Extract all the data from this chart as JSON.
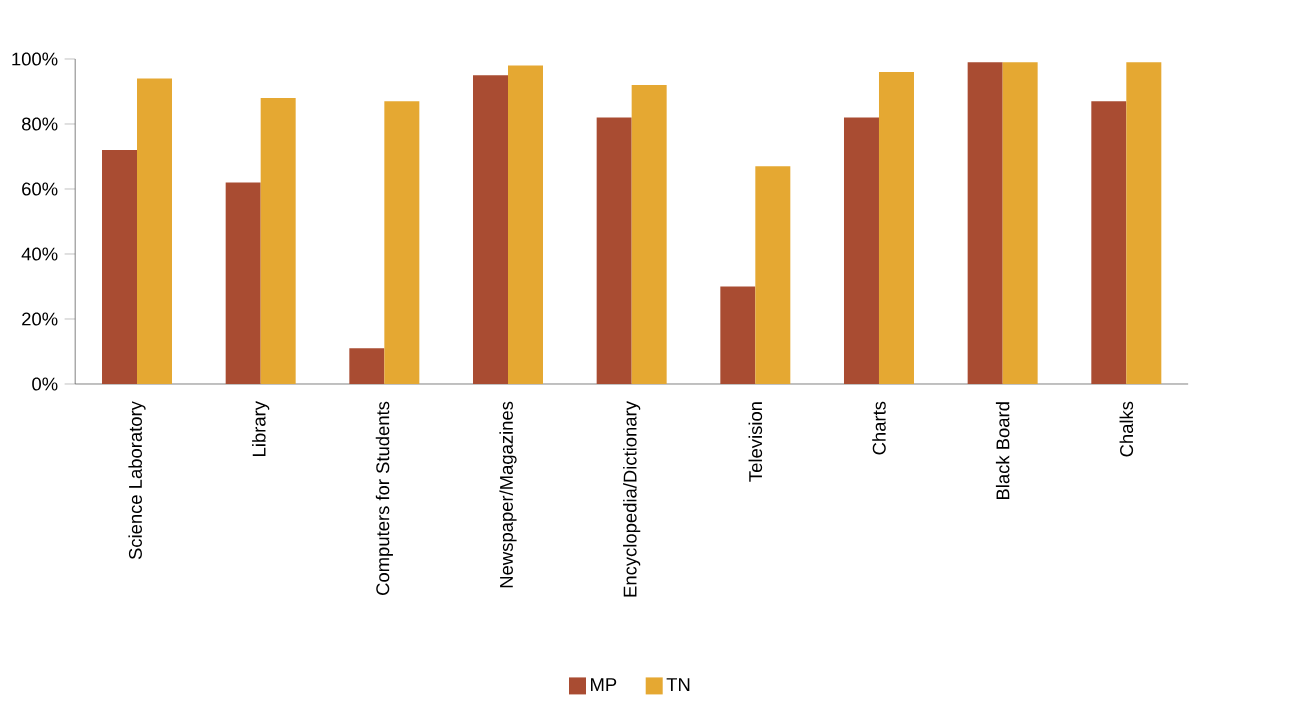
{
  "chart_data": {
    "type": "bar",
    "categories": [
      "Science Laboratory",
      "Library",
      "Computers for Students",
      "Newspaper/Magazines",
      "Encyclopedia/Dictionary",
      "Television",
      "Charts",
      "Black Board",
      "Chalks"
    ],
    "series": [
      {
        "name": "MP",
        "color": "#a94c32",
        "values": [
          72,
          62,
          11,
          95,
          82,
          30,
          82,
          99,
          87
        ]
      },
      {
        "name": "TN",
        "color": "#e5a832",
        "values": [
          94,
          88,
          87,
          98,
          92,
          67,
          96,
          99,
          99
        ]
      }
    ],
    "ylim": [
      0,
      100
    ],
    "yticks": [
      {
        "value": 0,
        "label": "0%"
      },
      {
        "value": 20,
        "label": "20%"
      },
      {
        "value": 40,
        "label": "40%"
      },
      {
        "value": 60,
        "label": "60%"
      },
      {
        "value": 80,
        "label": "80%"
      },
      {
        "value": 100,
        "label": "100%"
      }
    ],
    "legend": "bottom"
  }
}
